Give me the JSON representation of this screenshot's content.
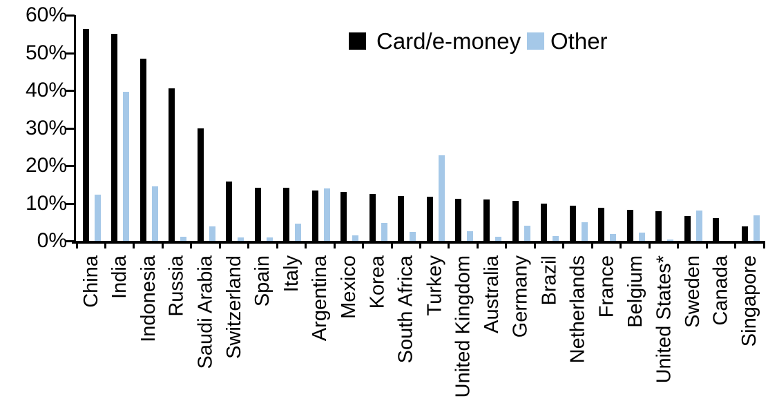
{
  "chart_data": {
    "type": "bar",
    "title": "",
    "categories": [
      "China",
      "India",
      "Indonesia",
      "Russia",
      "Saudi Arabia",
      "Switzerland",
      "Spain",
      "Italy",
      "Argentina",
      "Mexico",
      "Korea",
      "South Africa",
      "Turkey",
      "United Kingdom",
      "Australia",
      "Germany",
      "Brazil",
      "Netherlands",
      "France",
      "Belgium",
      "United States*",
      "Sweden",
      "Canada",
      "Singapore"
    ],
    "series": [
      {
        "name": "Card/e-money",
        "color": "#000000",
        "values": [
          56.4,
          55.1,
          48.4,
          40.6,
          29.9,
          15.7,
          14.2,
          14.2,
          13.4,
          13.0,
          12.4,
          11.9,
          11.8,
          11.2,
          11.0,
          10.7,
          10.0,
          9.3,
          8.8,
          8.2,
          7.9,
          6.6,
          6.0,
          3.8
        ]
      },
      {
        "name": "Other",
        "color": "#a5c8e8",
        "values": [
          12.3,
          39.7,
          14.5,
          1.1,
          3.9,
          0.9,
          1.0,
          4.6,
          13.9,
          1.4,
          4.8,
          2.4,
          22.8,
          2.6,
          1.1,
          4.1,
          1.2,
          4.9,
          1.8,
          2.2,
          0.3,
          8.1,
          0,
          6.8
        ]
      }
    ],
    "y_axis": {
      "unit": "%",
      "min": 0,
      "max": 60,
      "tick_step": 10,
      "ticks": [
        "0%",
        "10%",
        "20%",
        "30%",
        "40%",
        "50%",
        "60%"
      ]
    },
    "x_axis": {
      "label": ""
    },
    "legend_position": "top-center",
    "grid": false
  }
}
